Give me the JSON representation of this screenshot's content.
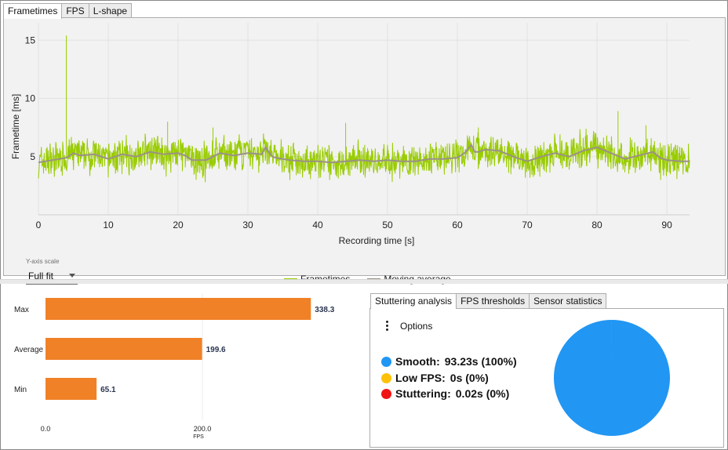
{
  "top_tabs": [
    {
      "label": "Frametimes",
      "active": true
    },
    {
      "label": "FPS",
      "active": false
    },
    {
      "label": "L-shape",
      "active": false
    }
  ],
  "frametime_chart": {
    "ylabel": "Frametime [ms]",
    "xlabel": "Recording time [s]",
    "x_ticks": [
      "0",
      "10",
      "20",
      "30",
      "40",
      "50",
      "60",
      "70",
      "80",
      "90"
    ],
    "y_ticks": [
      "5",
      "10",
      "15"
    ],
    "legend": [
      {
        "label": "Frametimes",
        "color": "#99cc00"
      },
      {
        "label": "Moving average",
        "color": "#9c9186"
      }
    ],
    "y_axis_scale_label": "Y-axis scale",
    "y_axis_scale_value": "Full fit"
  },
  "chart_data": [
    {
      "type": "line",
      "ylabel": "Frametime [ms]",
      "xlabel": "Recording time [s]",
      "xlim": [
        0,
        93.25
      ],
      "ylim": [
        0,
        16.5
      ],
      "grid": true,
      "legend_position": "bottom",
      "series": [
        {
          "name": "Frametimes",
          "color": "#99cc00",
          "base_ms": 5.0,
          "band_ms": [
            3.6,
            6.4
          ],
          "spikes": [
            {
              "x": 4.0,
              "y": 15.4
            },
            {
              "x": 18.5,
              "y": 8.0
            },
            {
              "x": 25.0,
              "y": 7.5
            },
            {
              "x": 44.0,
              "y": 7.9
            },
            {
              "x": 63.0,
              "y": 7.5
            },
            {
              "x": 79.5,
              "y": 7.2
            },
            {
              "x": 83.0,
              "y": 8.9
            },
            {
              "x": 87.0,
              "y": 7.7
            }
          ]
        },
        {
          "name": "Moving average",
          "color": "#9c9186",
          "x": [
            0,
            2,
            4,
            5,
            6,
            8,
            10,
            12,
            14,
            16,
            18,
            20,
            21,
            22,
            24,
            26,
            28,
            30,
            32,
            32.5,
            33.5,
            34,
            36,
            38,
            40,
            42,
            44,
            46,
            48,
            50,
            52,
            54,
            56,
            58,
            60,
            61,
            62,
            62.5,
            63,
            64,
            66,
            68,
            70,
            72,
            74,
            76,
            78,
            80,
            82,
            84,
            86,
            88,
            89,
            90,
            92,
            93.25
          ],
          "y": [
            4.5,
            4.7,
            4.9,
            5.3,
            5.1,
            5.2,
            4.8,
            5.2,
            5.0,
            5.4,
            5.2,
            5.3,
            5.1,
            4.7,
            4.7,
            5.3,
            5.1,
            5.3,
            5.2,
            5.8,
            5.0,
            4.9,
            4.7,
            4.6,
            4.6,
            4.5,
            4.6,
            4.7,
            4.6,
            4.7,
            4.6,
            4.6,
            4.8,
            4.8,
            4.9,
            5.3,
            6.0,
            5.4,
            5.4,
            5.6,
            5.5,
            5.0,
            4.6,
            5.0,
            5.3,
            5.0,
            5.5,
            5.8,
            5.3,
            4.8,
            5.1,
            5.4,
            4.9,
            4.7,
            4.6,
            4.6
          ]
        }
      ]
    },
    {
      "type": "bar",
      "orientation": "horizontal",
      "categories": [
        "Max",
        "Average",
        "Min"
      ],
      "values": [
        338.3,
        199.6,
        65.1
      ],
      "value_labels": [
        "338.3",
        "199.6",
        "65.1"
      ],
      "x_ticks": [
        "0.0",
        "200.0"
      ],
      "xlabel": "FPS",
      "color": "#f08127"
    },
    {
      "type": "pie",
      "labels": [
        "Smooth",
        "Low FPS",
        "Stuttering"
      ],
      "values": [
        93.23,
        0,
        0.02
      ],
      "colors": [
        "#2196f3",
        "#ffc107",
        "#f01414"
      ]
    }
  ],
  "stuttering_tabs": [
    {
      "label": "Stuttering analysis",
      "active": true
    },
    {
      "label": "FPS thresholds",
      "active": false
    },
    {
      "label": "Sensor statistics",
      "active": false
    }
  ],
  "stuttering": {
    "options_label": "Options",
    "rows": [
      {
        "label": "Smooth:",
        "value": "93.23s (100%)",
        "color": "#2196f3"
      },
      {
        "label": "Low FPS:",
        "value": "0s (0%)",
        "color": "#ffc107"
      },
      {
        "label": "Stuttering:",
        "value": "0.02s (0%)",
        "color": "#f01414"
      }
    ]
  }
}
